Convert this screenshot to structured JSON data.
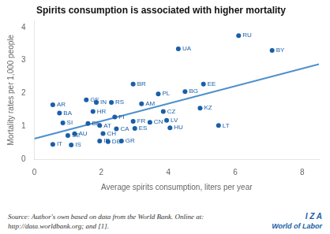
{
  "chart_data": {
    "type": "scatter",
    "title": "Spirits consumption is associated with higher mortality",
    "xlabel": "Average spirits consumption, liters per year",
    "ylabel": "Mortality rates per 1,000 people",
    "xlim": [
      0,
      8.5
    ],
    "ylim": [
      0,
      4.2
    ],
    "xticks": [
      0,
      2,
      4,
      6,
      8
    ],
    "yticks": [
      0,
      1,
      2,
      3,
      4
    ],
    "grid": false,
    "series": [
      {
        "type": "scatter",
        "color": "#1a5fa8",
        "labels": [
          "AR",
          "BA",
          "IT",
          "SI",
          "SE",
          "IS",
          "AU",
          "GE",
          "BE",
          "HR",
          "IN",
          "AT",
          "IE",
          "CH",
          "DE",
          "RS",
          "FI",
          "CA",
          "GR",
          "BR",
          "FR",
          "ES",
          "AM",
          "CN",
          "PL",
          "CZ",
          "LV",
          "HU",
          "UA",
          "BG",
          "KZ",
          "EE",
          "LT",
          "RU",
          "BY"
        ],
        "x": [
          0.55,
          0.75,
          0.55,
          0.85,
          1.0,
          1.1,
          1.2,
          1.55,
          1.6,
          1.75,
          1.85,
          1.95,
          1.95,
          2.05,
          2.2,
          2.3,
          2.4,
          2.45,
          2.6,
          2.95,
          2.95,
          3.0,
          3.2,
          3.45,
          3.7,
          3.85,
          3.95,
          4.05,
          4.3,
          4.5,
          4.95,
          5.05,
          5.5,
          6.1,
          7.1
        ],
        "values": [
          1.65,
          1.4,
          0.45,
          1.1,
          0.72,
          0.43,
          0.77,
          1.8,
          1.08,
          1.45,
          1.72,
          1.02,
          0.55,
          0.78,
          0.53,
          1.72,
          1.28,
          0.92,
          0.55,
          2.28,
          1.15,
          0.93,
          1.68,
          1.12,
          1.98,
          1.45,
          1.18,
          0.95,
          3.35,
          2.05,
          1.55,
          2.28,
          1.02,
          3.75,
          3.3
        ]
      },
      {
        "type": "line",
        "color": "#4d8fcc",
        "x": [
          0.0,
          8.5
        ],
        "values": [
          0.62,
          2.88
        ]
      }
    ],
    "annotations": {
      "source": [
        "Source: Author's own based on data from the World Bank. Online at:",
        "http://data.worldbank.org; and [1]."
      ],
      "brand": [
        "I Z A",
        "World of Labor"
      ]
    }
  }
}
